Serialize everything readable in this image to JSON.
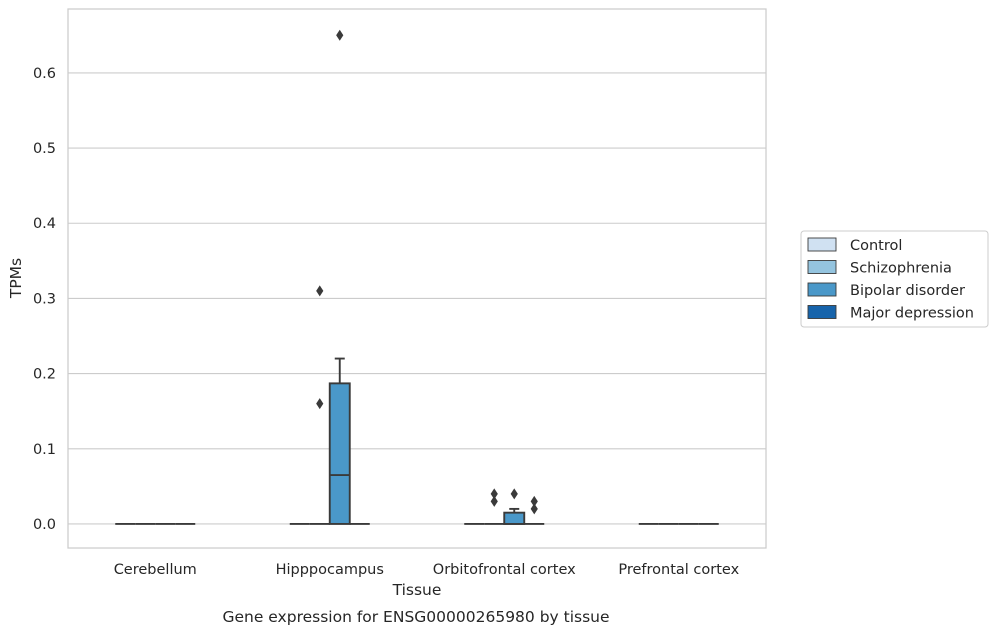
{
  "chart_data": {
    "type": "box",
    "title": "",
    "caption": "Gene expression for ENSG00000265980 by tissue",
    "xlabel": "Tissue",
    "ylabel": "TPMs",
    "categories": [
      "Cerebellum",
      "Hipppocampus",
      "Orbitofrontal cortex",
      "Prefrontal cortex"
    ],
    "yticks": [
      0.0,
      0.1,
      0.2,
      0.3,
      0.4,
      0.5,
      0.6
    ],
    "ytick_labels": [
      "0.0",
      "0.1",
      "0.2",
      "0.3",
      "0.4",
      "0.5",
      "0.6"
    ],
    "ylim": [
      -0.032,
      0.685
    ],
    "grid": true,
    "legend_position": "right",
    "series": [
      {
        "name": "Control",
        "color": "#d0e1f2",
        "boxes": [
          {
            "category": "Cerebellum",
            "whislo": 0,
            "q1": 0,
            "med": 0,
            "q3": 0,
            "whishi": 0,
            "fliers": []
          },
          {
            "category": "Hipppocampus",
            "whislo": 0,
            "q1": 0,
            "med": 0,
            "q3": 0,
            "whishi": 0,
            "fliers": []
          },
          {
            "category": "Orbitofrontal cortex",
            "whislo": 0,
            "q1": 0,
            "med": 0,
            "q3": 0,
            "whishi": 0,
            "fliers": []
          },
          {
            "category": "Prefrontal cortex",
            "whislo": 0,
            "q1": 0,
            "med": 0,
            "q3": 0,
            "whishi": 0,
            "fliers": []
          }
        ]
      },
      {
        "name": "Schizophrenia",
        "color": "#94c4df",
        "boxes": [
          {
            "category": "Cerebellum",
            "whislo": 0,
            "q1": 0,
            "med": 0,
            "q3": 0,
            "whishi": 0,
            "fliers": []
          },
          {
            "category": "Hipppocampus",
            "whislo": 0,
            "q1": 0,
            "med": 0,
            "q3": 0,
            "whishi": 0,
            "fliers": [
              0.16,
              0.31
            ]
          },
          {
            "category": "Orbitofrontal cortex",
            "whislo": 0,
            "q1": 0,
            "med": 0,
            "q3": 0,
            "whishi": 0,
            "fliers": [
              0.03,
              0.04
            ]
          },
          {
            "category": "Prefrontal cortex",
            "whislo": 0,
            "q1": 0,
            "med": 0,
            "q3": 0,
            "whishi": 0,
            "fliers": []
          }
        ]
      },
      {
        "name": "Bipolar disorder",
        "color": "#4a98c9",
        "boxes": [
          {
            "category": "Cerebellum",
            "whislo": 0,
            "q1": 0,
            "med": 0,
            "q3": 0,
            "whishi": 0,
            "fliers": []
          },
          {
            "category": "Hipppocampus",
            "whislo": 0,
            "q1": 0,
            "med": 0.065,
            "q3": 0.187,
            "whishi": 0.22,
            "fliers": [
              0.65
            ]
          },
          {
            "category": "Orbitofrontal cortex",
            "whislo": 0,
            "q1": 0,
            "med": 0,
            "q3": 0.015,
            "whishi": 0.02,
            "fliers": [
              0.04
            ]
          },
          {
            "category": "Prefrontal cortex",
            "whislo": 0,
            "q1": 0,
            "med": 0,
            "q3": 0,
            "whishi": 0,
            "fliers": []
          }
        ]
      },
      {
        "name": "Major depression",
        "color": "#1764ab",
        "boxes": [
          {
            "category": "Cerebellum",
            "whislo": 0,
            "q1": 0,
            "med": 0,
            "q3": 0,
            "whishi": 0,
            "fliers": []
          },
          {
            "category": "Hipppocampus",
            "whislo": 0,
            "q1": 0,
            "med": 0,
            "q3": 0,
            "whishi": 0,
            "fliers": []
          },
          {
            "category": "Orbitofrontal cortex",
            "whislo": 0,
            "q1": 0,
            "med": 0,
            "q3": 0,
            "whishi": 0,
            "fliers": [
              0.02,
              0.03
            ]
          },
          {
            "category": "Prefrontal cortex",
            "whislo": 0,
            "q1": 0,
            "med": 0,
            "q3": 0,
            "whishi": 0,
            "fliers": []
          }
        ]
      }
    ]
  }
}
